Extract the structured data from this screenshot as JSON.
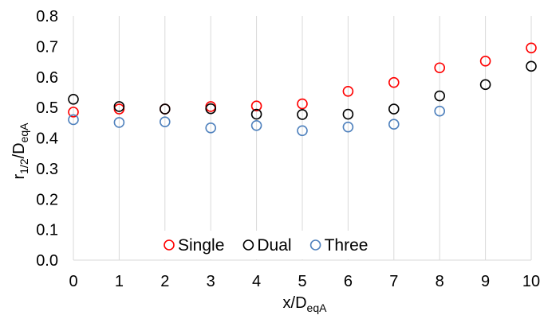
{
  "chart_data": {
    "type": "scatter",
    "xlabel": "x/D",
    "xlabel_sub": "eqA",
    "ylabel": "r",
    "ylabel_sub1": "1/2",
    "ylabel_mid": "/D",
    "ylabel_sub2": "eqA",
    "xlim": [
      0,
      10
    ],
    "ylim": [
      0.0,
      0.8
    ],
    "xticks": [
      "0",
      "1",
      "2",
      "3",
      "4",
      "5",
      "6",
      "7",
      "8",
      "9",
      "10"
    ],
    "yticks": [
      "0.0",
      "0.1",
      "0.2",
      "0.3",
      "0.4",
      "0.5",
      "0.6",
      "0.7",
      "0.8"
    ],
    "grid": "vertical",
    "legend_position": "bottom-center",
    "marker": "open-circle",
    "series": [
      {
        "name": "Single",
        "color": "#ff0000",
        "x": [
          0,
          1,
          2,
          3,
          4,
          5,
          6,
          7,
          8,
          9,
          10
        ],
        "values": [
          0.485,
          0.495,
          0.495,
          0.503,
          0.505,
          0.512,
          0.553,
          0.582,
          0.63,
          0.652,
          0.695
        ]
      },
      {
        "name": "Dual",
        "color": "#000000",
        "x": [
          0,
          1,
          2,
          3,
          4,
          5,
          6,
          7,
          8,
          9,
          10
        ],
        "values": [
          0.527,
          0.503,
          0.495,
          0.496,
          0.478,
          0.477,
          0.478,
          0.495,
          0.538,
          0.575,
          0.635
        ]
      },
      {
        "name": "Three",
        "color": "#4f81bd",
        "x": [
          0,
          1,
          2,
          3,
          4,
          5,
          6,
          7,
          8
        ],
        "values": [
          0.46,
          0.451,
          0.453,
          0.433,
          0.441,
          0.424,
          0.436,
          0.445,
          0.488
        ]
      }
    ]
  }
}
